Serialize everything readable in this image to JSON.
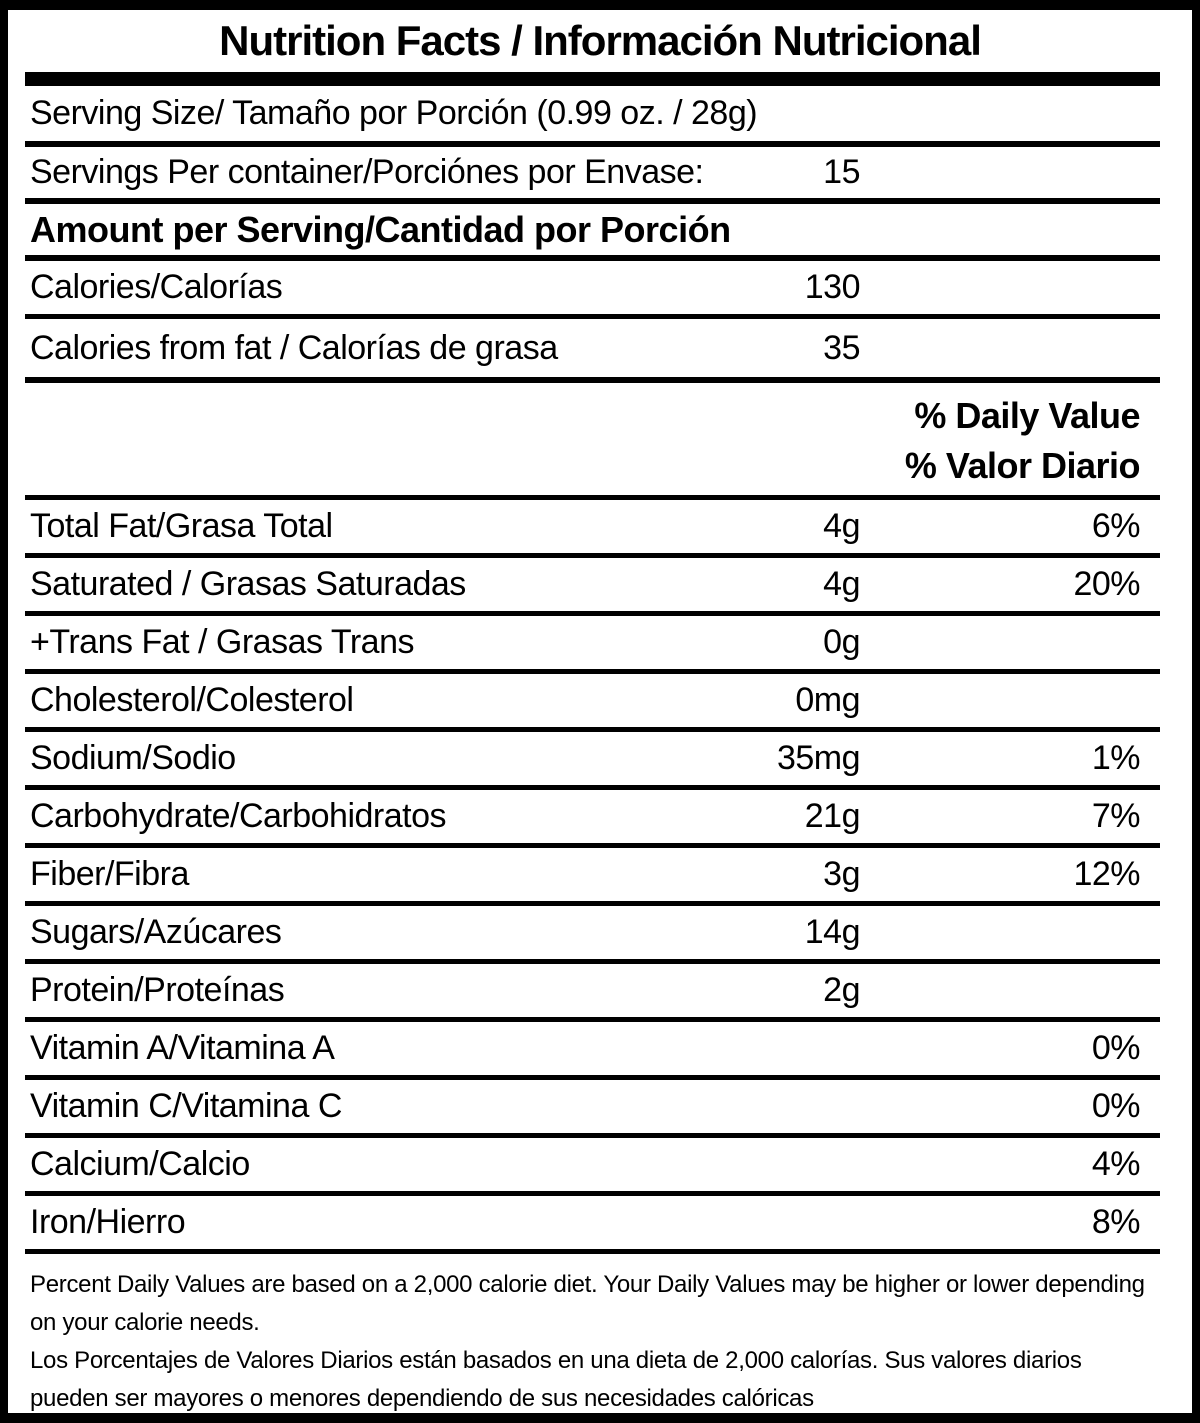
{
  "label": {
    "title": "Nutrition Facts / Información Nutricional",
    "serving_size": {
      "label": "Serving Size/ Tamaño por Porción  (0.99 oz. / 28g)"
    },
    "servings_per_container": {
      "label": "Servings Per container/Porciónes por Envase:",
      "value": "15"
    },
    "amount_per_serving_header": "Amount per Serving/Cantidad por Porción",
    "calories": {
      "label": "Calories/Calorías",
      "value": "130"
    },
    "calories_from_fat": {
      "label": "Calories from fat / Calorías de grasa",
      "value": "35"
    },
    "daily_value_header": {
      "line1": "% Daily Value",
      "line2": "% Valor Diario"
    },
    "nutrients": [
      {
        "label": "Total Fat/Grasa Total",
        "amount": "4g",
        "dv": "6%"
      },
      {
        "label": "Saturated / Grasas Saturadas",
        "amount": "4g",
        "dv": "20%"
      },
      {
        "label": "+Trans Fat / Grasas Trans",
        "amount": "0g",
        "dv": ""
      },
      {
        "label": "Cholesterol/Colesterol",
        "amount": "0mg",
        "dv": ""
      },
      {
        "label": "Sodium/Sodio",
        "amount": "35mg",
        "dv": "1%"
      },
      {
        "label": "Carbohydrate/Carbohidratos",
        "amount": "21g",
        "dv": "7%"
      },
      {
        "label": "Fiber/Fibra",
        "amount": "3g",
        "dv": "12%"
      },
      {
        "label": "Sugars/Azúcares",
        "amount": "14g",
        "dv": ""
      },
      {
        "label": "Protein/Proteínas",
        "amount": "2g",
        "dv": ""
      },
      {
        "label": "Vitamin A/Vitamina A",
        "amount": "",
        "dv": "0%"
      },
      {
        "label": "Vitamin C/Vitamina C",
        "amount": "",
        "dv": "0%"
      },
      {
        "label": "Calcium/Calcio",
        "amount": "",
        "dv": "4%"
      },
      {
        "label": "Iron/Hierro",
        "amount": "",
        "dv": "8%"
      }
    ],
    "footnote_en": "Percent Daily Values are based on a 2,000 calorie diet. Your Daily Values may be higher or lower depending on your calorie needs.",
    "footnote_es": "Los Porcentajes de Valores Diarios están basados en una dieta de 2,000 calorías. Sus valores diarios pueden ser mayores o menores dependiendo de sus necesidades calóricas"
  },
  "colors": {
    "text": "#000000",
    "background": "#ffffff"
  }
}
